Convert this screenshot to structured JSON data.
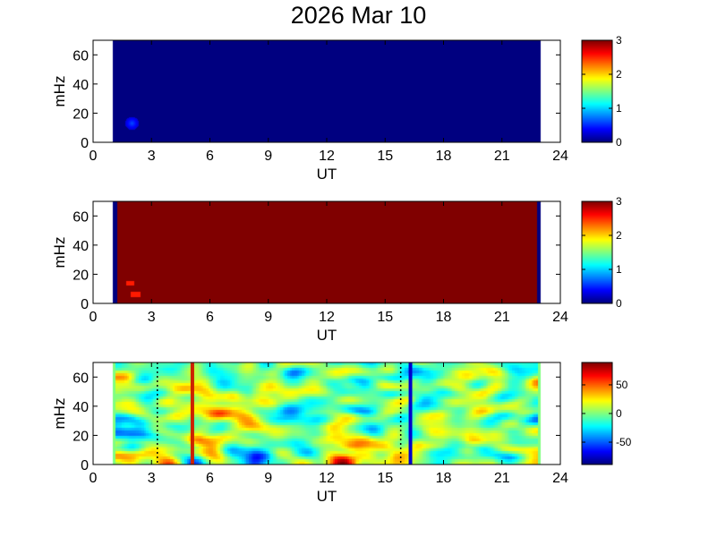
{
  "title": "2026 Mar 10",
  "chart_data": [
    {
      "type": "heatmap",
      "xlabel": "UT",
      "ylabel": "mHz",
      "xlim": [
        0,
        24
      ],
      "ylim": [
        0,
        70
      ],
      "xticks": [
        0,
        3,
        6,
        9,
        12,
        15,
        18,
        21,
        24
      ],
      "yticks": [
        0,
        20,
        40,
        60
      ],
      "data_x_range": [
        1.0,
        23.0
      ],
      "background_value": 0,
      "features": [
        {
          "x": 2.0,
          "y": 13,
          "value": 0.6
        }
      ],
      "colorbar": {
        "clim": [
          0,
          3
        ],
        "ticks": [
          0,
          1,
          2,
          3
        ],
        "colormap": "jet"
      }
    },
    {
      "type": "heatmap",
      "xlabel": "UT",
      "ylabel": "mHz",
      "xlim": [
        0,
        24
      ],
      "ylim": [
        0,
        70
      ],
      "xticks": [
        0,
        3,
        6,
        9,
        12,
        15,
        18,
        21,
        24
      ],
      "yticks": [
        0,
        20,
        40,
        60
      ],
      "data_x_range": [
        1.0,
        23.0
      ],
      "background_value": 3,
      "edge_value": 0,
      "edge_ranges": [
        [
          1.0,
          1.25
        ],
        [
          22.8,
          23.0
        ]
      ],
      "colorbar": {
        "clim": [
          0,
          3
        ],
        "ticks": [
          0,
          1,
          2,
          3
        ],
        "colormap": "jet"
      }
    },
    {
      "type": "heatmap",
      "xlabel": "UT",
      "ylabel": "mHz",
      "xlim": [
        0,
        24
      ],
      "ylim": [
        0,
        70
      ],
      "xticks": [
        0,
        3,
        6,
        9,
        12,
        15,
        18,
        21,
        24
      ],
      "yticks": [
        0,
        20,
        40,
        60
      ],
      "data_x_range": [
        1.0,
        23.0
      ],
      "vertical_lines": [
        {
          "x": 5.1,
          "color": "#cc2200",
          "style": "solid"
        },
        {
          "x": 16.3,
          "color": "#0000cc",
          "style": "solid"
        },
        {
          "x": 3.3,
          "color": "#000000",
          "style": "dotted"
        },
        {
          "x": 15.8,
          "color": "#000000",
          "style": "dotted"
        }
      ],
      "colorbar": {
        "clim": [
          -89,
          89
        ],
        "ticks": [
          -50,
          0,
          50
        ],
        "colormap": "jet"
      }
    }
  ]
}
